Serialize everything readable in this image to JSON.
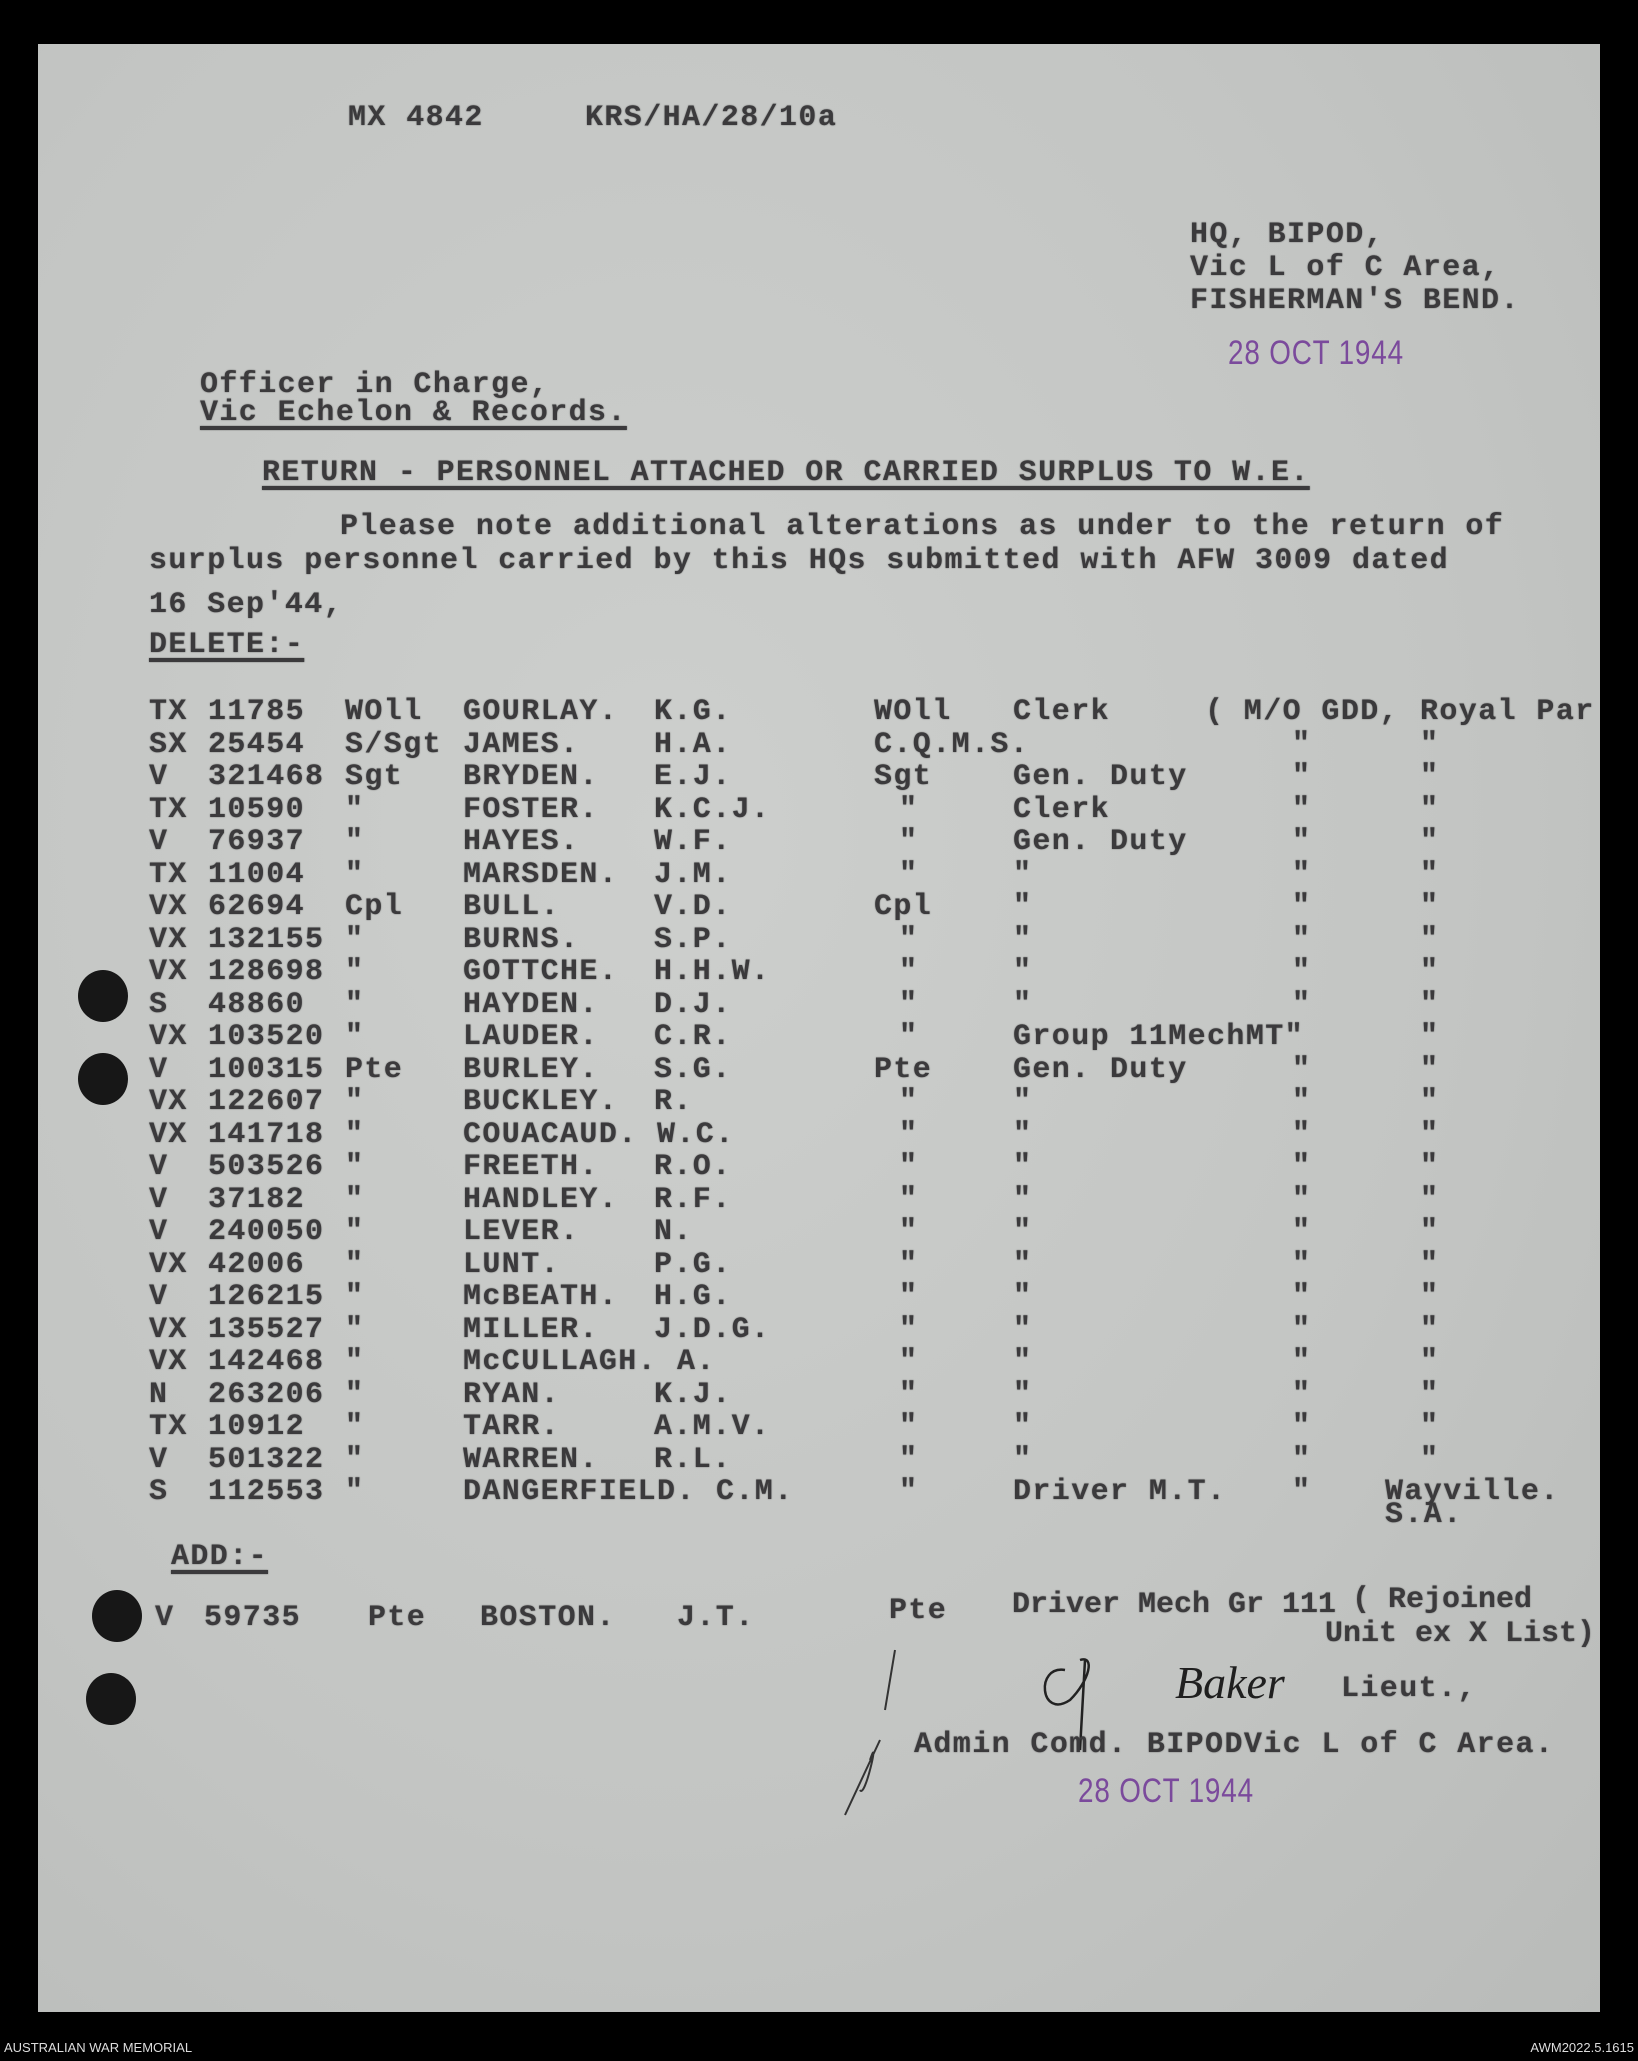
{
  "header": {
    "ref_left": "MX 4842",
    "ref_right": "KRS/HA/28/10a"
  },
  "from": {
    "line1": "HQ, BIPOD,",
    "line2": "Vic L of C Area,",
    "line3": "FISHERMAN'S BEND."
  },
  "stamp_date": "28 OCT 1944",
  "to": {
    "line1": "Officer in Charge,",
    "line2": "Vic Echelon & Records."
  },
  "subject": "RETURN - PERSONNEL ATTACHED OR CARRIED SURPLUS TO W.E.",
  "body": {
    "line1": "Please note additional alterations as under to the return of",
    "line2": "surplus personnel carried by this HQs submitted with AFW 3009 dated",
    "line3": "16 Sep'44,"
  },
  "delete_label": "DELETE:-",
  "delete_rows": [
    {
      "prefix": "TX",
      "number": "11785",
      "rank": "WOll",
      "surname": "GOURLAY.",
      "initials": "K.G.",
      "rank2": "WOll",
      "duty": "Clerk",
      "loc1": "( M/O GDD,",
      "loc2": "Royal Par"
    },
    {
      "prefix": "SX",
      "number": "25454",
      "rank": "S/Sgt",
      "surname": "JAMES.",
      "initials": "H.A.",
      "rank2": "C.Q.M.S.",
      "duty": "",
      "loc1": "\"",
      "loc2": "\""
    },
    {
      "prefix": "V",
      "number": "321468",
      "rank": "Sgt",
      "surname": "BRYDEN.",
      "initials": "E.J.",
      "rank2": "Sgt",
      "duty": "Gen. Duty",
      "loc1": "\"",
      "loc2": "\""
    },
    {
      "prefix": "TX",
      "number": "10590",
      "rank": "\"",
      "surname": "FOSTER.",
      "initials": "K.C.J.",
      "rank2": "\"",
      "duty": "Clerk",
      "loc1": "\"",
      "loc2": "\""
    },
    {
      "prefix": "V",
      "number": "76937",
      "rank": "\"",
      "surname": "HAYES.",
      "initials": "W.F.",
      "rank2": "\"",
      "duty": "Gen. Duty",
      "loc1": "\"",
      "loc2": "\""
    },
    {
      "prefix": "TX",
      "number": "11004",
      "rank": "\"",
      "surname": "MARSDEN.",
      "initials": "J.M.",
      "rank2": "\"",
      "duty": "\"",
      "loc1": "\"",
      "loc2": "\""
    },
    {
      "prefix": "VX",
      "number": "62694",
      "rank": "Cpl",
      "surname": "BULL.",
      "initials": "V.D.",
      "rank2": "Cpl",
      "duty": "\"",
      "loc1": "\"",
      "loc2": "\""
    },
    {
      "prefix": "VX",
      "number": "132155",
      "rank": "\"",
      "surname": "BURNS.",
      "initials": "S.P.",
      "rank2": "\"",
      "duty": "\"",
      "loc1": "\"",
      "loc2": "\""
    },
    {
      "prefix": "VX",
      "number": "128698",
      "rank": "\"",
      "surname": "GOTTCHE.",
      "initials": "H.H.W.",
      "rank2": "\"",
      "duty": "\"",
      "loc1": "\"",
      "loc2": "\""
    },
    {
      "prefix": "S",
      "number": "48860",
      "rank": "\"",
      "surname": "HAYDEN.",
      "initials": "D.J.",
      "rank2": "\"",
      "duty": "\"",
      "loc1": "\"",
      "loc2": "\""
    },
    {
      "prefix": "VX",
      "number": "103520",
      "rank": "\"",
      "surname": "LAUDER.",
      "initials": "C.R.",
      "rank2": "\"",
      "duty": "Group 11MechMT\"",
      "loc1": "",
      "loc2": "\""
    },
    {
      "prefix": "V",
      "number": "100315",
      "rank": "Pte",
      "surname": "BURLEY.",
      "initials": "S.G.",
      "rank2": "Pte",
      "duty": "Gen. Duty",
      "loc1": "\"",
      "loc2": "\""
    },
    {
      "prefix": "VX",
      "number": "122607",
      "rank": "\"",
      "surname": "BUCKLEY.",
      "initials": "R.",
      "rank2": "\"",
      "duty": "\"",
      "loc1": "\"",
      "loc2": "\""
    },
    {
      "prefix": "VX",
      "number": "141718",
      "rank": "\"",
      "surname": "COUACAUD.",
      "initials": "W.C.",
      "rank2": "\"",
      "duty": "\"",
      "loc1": "\"",
      "loc2": "\""
    },
    {
      "prefix": "V",
      "number": "503526",
      "rank": "\"",
      "surname": "FREETH.",
      "initials": "R.O.",
      "rank2": "\"",
      "duty": "\"",
      "loc1": "\"",
      "loc2": "\""
    },
    {
      "prefix": "V",
      "number": "37182",
      "rank": "\"",
      "surname": "HANDLEY.",
      "initials": "R.F.",
      "rank2": "\"",
      "duty": "\"",
      "loc1": "\"",
      "loc2": "\""
    },
    {
      "prefix": "V",
      "number": "240050",
      "rank": "\"",
      "surname": "LEVER.",
      "initials": "N.",
      "rank2": "\"",
      "duty": "\"",
      "loc1": "\"",
      "loc2": "\""
    },
    {
      "prefix": "VX",
      "number": "42006",
      "rank": "\"",
      "surname": "LUNT.",
      "initials": "P.G.",
      "rank2": "\"",
      "duty": "\"",
      "loc1": "\"",
      "loc2": "\""
    },
    {
      "prefix": "V",
      "number": "126215",
      "rank": "\"",
      "surname": "McBEATH.",
      "initials": "H.G.",
      "rank2": "\"",
      "duty": "\"",
      "loc1": "\"",
      "loc2": "\""
    },
    {
      "prefix": "VX",
      "number": "135527",
      "rank": "\"",
      "surname": "MILLER.",
      "initials": "J.D.G.",
      "rank2": "\"",
      "duty": "\"",
      "loc1": "\"",
      "loc2": "\""
    },
    {
      "prefix": "VX",
      "number": "142468",
      "rank": "\"",
      "surname": "McCULLAGH.",
      "initials": "A.",
      "rank2": "\"",
      "duty": "\"",
      "loc1": "\"",
      "loc2": "\""
    },
    {
      "prefix": "N",
      "number": "263206",
      "rank": "\"",
      "surname": "RYAN.",
      "initials": "K.J.",
      "rank2": "\"",
      "duty": "\"",
      "loc1": "\"",
      "loc2": "\""
    },
    {
      "prefix": "TX",
      "number": "10912",
      "rank": "\"",
      "surname": "TARR.",
      "initials": "A.M.V.",
      "rank2": "\"",
      "duty": "\"",
      "loc1": "\"",
      "loc2": "\""
    },
    {
      "prefix": "V",
      "number": "501322",
      "rank": "\"",
      "surname": "WARREN.",
      "initials": "R.L.",
      "rank2": "\"",
      "duty": "\"",
      "loc1": "\"",
      "loc2": "\""
    },
    {
      "prefix": "S",
      "number": "112553",
      "rank": "\"",
      "surname": "DANGERFIELD.",
      "initials": "C.M.",
      "rank2": "\"",
      "duty": "Driver M.T.",
      "loc1": "\"",
      "loc2": "Wayville."
    }
  ],
  "last_row_extra": "S.A.",
  "add_label": "ADD:-",
  "add_row": {
    "prefix": "V",
    "number": "59735",
    "rank": "Pte",
    "surname": "BOSTON.",
    "initials": "J.T.",
    "rank2": "Pte",
    "duty": "Driver Mech Gr 111",
    "note1": "( Rejoined",
    "note2": "Unit ex X List)"
  },
  "signature": {
    "signed": "Baker",
    "title": "Lieut.,",
    "position": "Admin Comd. BIPODVic L of C Area."
  },
  "footer": {
    "left": "AUSTRALIAN WAR MEMORIAL",
    "right": "AWM2022.5.1615"
  },
  "colors": {
    "stamp": "#7b4a9c",
    "ink": "#3b3a3c",
    "paper": "#c4c6c4"
  }
}
